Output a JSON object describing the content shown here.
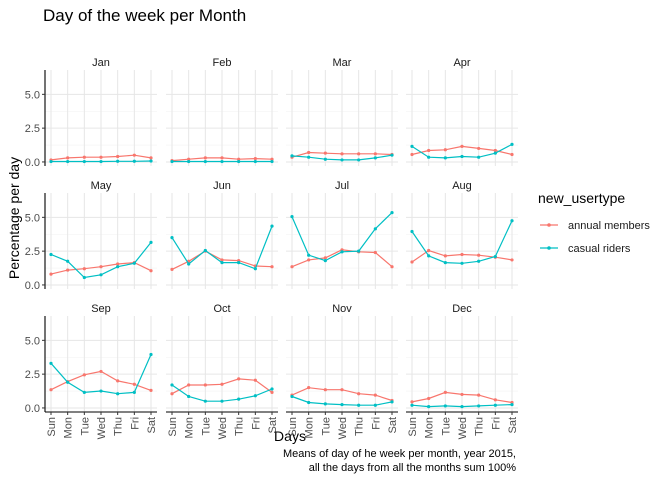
{
  "chart_data": {
    "type": "line",
    "layout": "facet-grid",
    "title": "Day of the week per Month",
    "xlabel": "Days",
    "ylabel": "Percentage per day",
    "caption": [
      "Means of day of he week per month, year 2015,",
      "all the days from all the months sum 100%"
    ],
    "categories": [
      "Sun",
      "Mon",
      "Tue",
      "Wed",
      "Thu",
      "Fri",
      "Sat"
    ],
    "ylim": [
      -0.3,
      6.8
    ],
    "yticks": [
      0.0,
      2.5,
      5.0
    ],
    "ytick_labels": [
      "0.0",
      "2.5",
      "5.0"
    ],
    "grid": true,
    "legend": {
      "title": "new_usertype",
      "position": "right",
      "entries": [
        "annual members",
        "casual riders"
      ]
    },
    "series_colors": {
      "annual members": "#F8766D",
      "casual riders": "#00BFC4"
    },
    "facets": [
      {
        "label": "Jan",
        "series": [
          {
            "name": "annual members",
            "values": [
              0.15,
              0.3,
              0.35,
              0.35,
              0.4,
              0.5,
              0.3
            ]
          },
          {
            "name": "casual riders",
            "values": [
              0.03,
              0.03,
              0.03,
              0.03,
              0.05,
              0.05,
              0.07
            ]
          }
        ]
      },
      {
        "label": "Feb",
        "series": [
          {
            "name": "annual members",
            "values": [
              0.1,
              0.2,
              0.3,
              0.3,
              0.2,
              0.25,
              0.2
            ]
          },
          {
            "name": "casual riders",
            "values": [
              0.03,
              0.03,
              0.03,
              0.03,
              0.03,
              0.03,
              0.03
            ]
          }
        ]
      },
      {
        "label": "Mar",
        "series": [
          {
            "name": "annual members",
            "values": [
              0.35,
              0.7,
              0.65,
              0.6,
              0.6,
              0.6,
              0.55
            ]
          },
          {
            "name": "casual riders",
            "values": [
              0.45,
              0.35,
              0.2,
              0.15,
              0.15,
              0.3,
              0.5
            ]
          }
        ]
      },
      {
        "label": "Apr",
        "series": [
          {
            "name": "annual members",
            "values": [
              0.55,
              0.85,
              0.9,
              1.15,
              1.0,
              0.85,
              0.55
            ]
          },
          {
            "name": "casual riders",
            "values": [
              1.15,
              0.35,
              0.3,
              0.4,
              0.35,
              0.65,
              1.3
            ]
          }
        ]
      },
      {
        "label": "May",
        "series": [
          {
            "name": "annual members",
            "values": [
              0.8,
              1.1,
              1.2,
              1.35,
              1.55,
              1.65,
              1.05
            ]
          },
          {
            "name": "casual riders",
            "values": [
              2.25,
              1.75,
              0.55,
              0.75,
              1.35,
              1.6,
              3.15
            ]
          }
        ]
      },
      {
        "label": "Jun",
        "series": [
          {
            "name": "annual members",
            "values": [
              1.15,
              1.75,
              2.5,
              1.85,
              1.8,
              1.4,
              1.35
            ]
          },
          {
            "name": "casual riders",
            "values": [
              3.5,
              1.55,
              2.55,
              1.65,
              1.65,
              1.2,
              4.35
            ]
          }
        ]
      },
      {
        "label": "Jul",
        "series": [
          {
            "name": "annual members",
            "values": [
              1.35,
              1.85,
              2.0,
              2.6,
              2.45,
              2.4,
              1.35
            ]
          },
          {
            "name": "casual riders",
            "values": [
              5.05,
              2.2,
              1.8,
              2.45,
              2.5,
              4.15,
              5.35
            ]
          }
        ]
      },
      {
        "label": "Aug",
        "series": [
          {
            "name": "annual members",
            "values": [
              1.7,
              2.55,
              2.15,
              2.25,
              2.2,
              2.05,
              1.85
            ]
          },
          {
            "name": "casual riders",
            "values": [
              3.95,
              2.15,
              1.65,
              1.6,
              1.75,
              2.1,
              4.75
            ]
          }
        ]
      },
      {
        "label": "Sep",
        "series": [
          {
            "name": "annual members",
            "values": [
              1.35,
              1.95,
              2.45,
              2.7,
              2.0,
              1.75,
              1.3
            ]
          },
          {
            "name": "casual riders",
            "values": [
              3.3,
              1.9,
              1.15,
              1.25,
              1.05,
              1.15,
              3.95
            ]
          }
        ]
      },
      {
        "label": "Oct",
        "series": [
          {
            "name": "annual members",
            "values": [
              1.05,
              1.7,
              1.7,
              1.75,
              2.15,
              2.05,
              1.15
            ]
          },
          {
            "name": "casual riders",
            "values": [
              1.7,
              0.85,
              0.5,
              0.5,
              0.65,
              0.9,
              1.4
            ]
          }
        ]
      },
      {
        "label": "Nov",
        "series": [
          {
            "name": "annual members",
            "values": [
              0.95,
              1.5,
              1.35,
              1.35,
              1.05,
              0.95,
              0.55
            ]
          },
          {
            "name": "casual riders",
            "values": [
              0.85,
              0.4,
              0.3,
              0.25,
              0.2,
              0.2,
              0.45
            ]
          }
        ]
      },
      {
        "label": "Dec",
        "series": [
          {
            "name": "annual members",
            "values": [
              0.45,
              0.7,
              1.15,
              1.0,
              0.95,
              0.6,
              0.4
            ]
          },
          {
            "name": "casual riders",
            "values": [
              0.2,
              0.1,
              0.15,
              0.1,
              0.15,
              0.2,
              0.25
            ]
          }
        ]
      }
    ]
  }
}
